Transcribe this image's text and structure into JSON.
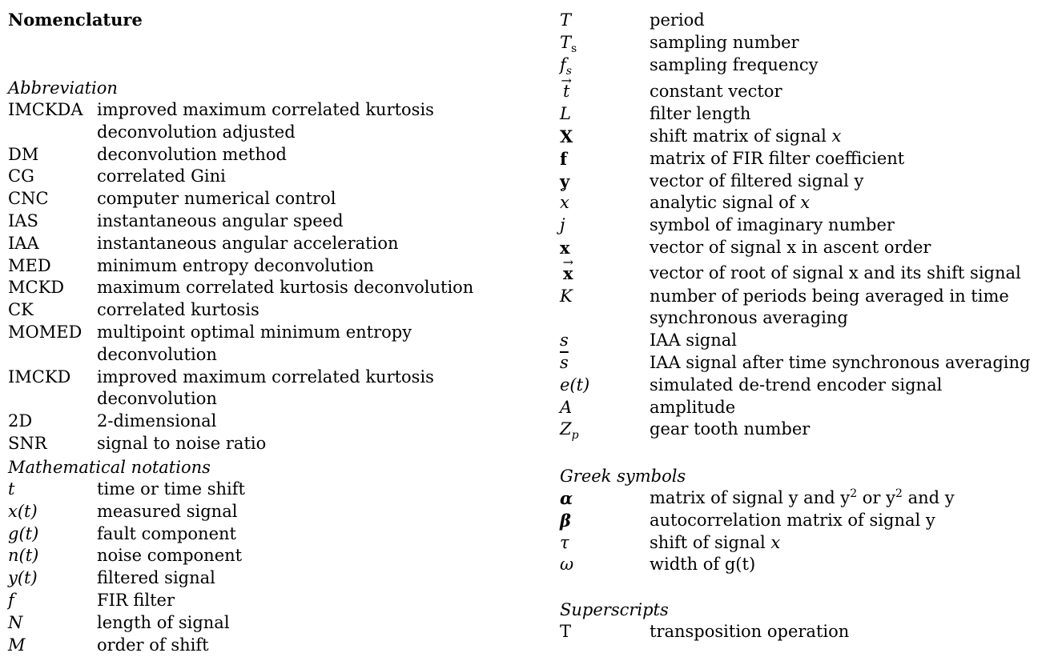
{
  "title": "Nomenclature",
  "abbreviation": {
    "heading": "Abbreviation",
    "rows": [
      {
        "sym": "IMCKDA",
        "desc": "improved maximum correlated kurtosis deconvolution adjusted"
      },
      {
        "sym": "DM",
        "desc": "deconvolution method"
      },
      {
        "sym": "CG",
        "desc": "correlated Gini"
      },
      {
        "sym": "CNC",
        "desc": "computer numerical control"
      },
      {
        "sym": "IAS",
        "desc": "instantaneous angular speed"
      },
      {
        "sym": "IAA",
        "desc": "instantaneous angular acceleration"
      },
      {
        "sym": "MED",
        "desc": "minimum entropy deconvolution"
      },
      {
        "sym": "MCKD",
        "desc": "maximum correlated kurtosis deconvolution"
      },
      {
        "sym": "CK",
        "desc": "correlated kurtosis"
      },
      {
        "sym": "MOMED",
        "desc": "multipoint optimal minimum entropy deconvolution"
      },
      {
        "sym": "IMCKD",
        "desc": "improved maximum correlated kurtosis deconvolution"
      },
      {
        "sym": "2D",
        "desc": "2-dimensional"
      },
      {
        "sym": "SNR",
        "desc": "signal to noise ratio"
      }
    ]
  },
  "math": {
    "heading": "Mathematical notations",
    "rows": [
      {
        "sym": "t",
        "desc": "time or time shift"
      },
      {
        "sym": "x(t)",
        "desc": "measured signal"
      },
      {
        "sym": "g(t)",
        "desc": "fault component"
      },
      {
        "sym": "n(t)",
        "desc": "noise component"
      },
      {
        "sym": "y(t)",
        "desc": "filtered signal"
      },
      {
        "sym": "f",
        "desc": "FIR filter"
      },
      {
        "sym": "N",
        "desc": "length of signal"
      },
      {
        "sym": "M",
        "desc": "order of shift"
      }
    ]
  },
  "right": {
    "rows": [
      {
        "sym": "T",
        "desc": "period"
      },
      {
        "sym": "Ts",
        "sym_base": "T",
        "sym_sub": "s",
        "desc": "sampling number"
      },
      {
        "sym": "fs",
        "sym_base": "f",
        "sym_sub": "s",
        "desc": "sampling frequency"
      },
      {
        "sym": "t",
        "desc": "constant vector"
      },
      {
        "sym": "L",
        "desc": "filter length"
      },
      {
        "sym": "X",
        "desc": "shift matrix of signal",
        "desc_var": "x"
      },
      {
        "sym": "f",
        "desc": "matrix of FIR filter coefficient"
      },
      {
        "sym": "y",
        "desc": "vector of filtered signal y"
      },
      {
        "sym": "x",
        "desc": "analytic signal of",
        "desc_var": "x"
      },
      {
        "sym": "j",
        "desc": "symbol of imaginary number"
      },
      {
        "sym": "x",
        "desc": "vector of signal x in ascent order"
      },
      {
        "sym": "x",
        "desc": "vector of root of signal x and its shift signal"
      },
      {
        "sym": "K",
        "desc": "number of periods being averaged in time synchronous averaging"
      },
      {
        "sym": "s",
        "desc": "IAA signal"
      },
      {
        "sym": "s",
        "desc": "IAA signal after time synchronous averaging"
      },
      {
        "sym": "e(t)",
        "desc": "simulated de-trend encoder signal"
      },
      {
        "sym": "A",
        "desc": "amplitude"
      },
      {
        "sym": "Zp",
        "sym_base": "Z",
        "sym_sub": "p",
        "desc": "gear tooth number"
      }
    ]
  },
  "greek": {
    "heading": "Greek symbols",
    "rows": [
      {
        "sym": "α",
        "desc_a": "matrix of signal y and y",
        "sup1": "2",
        "desc_b": " or y",
        "sup2": "2",
        "desc_c": " and y"
      },
      {
        "sym": "β",
        "desc": "autocorrelation matrix of signal y"
      },
      {
        "sym": "τ",
        "desc": "shift of signal",
        "desc_var": "x"
      },
      {
        "sym": "ω",
        "desc": "width of g(t)"
      }
    ]
  },
  "superscripts": {
    "heading": "Superscripts",
    "rows": [
      {
        "sym": "T",
        "desc": "transposition operation"
      }
    ]
  }
}
